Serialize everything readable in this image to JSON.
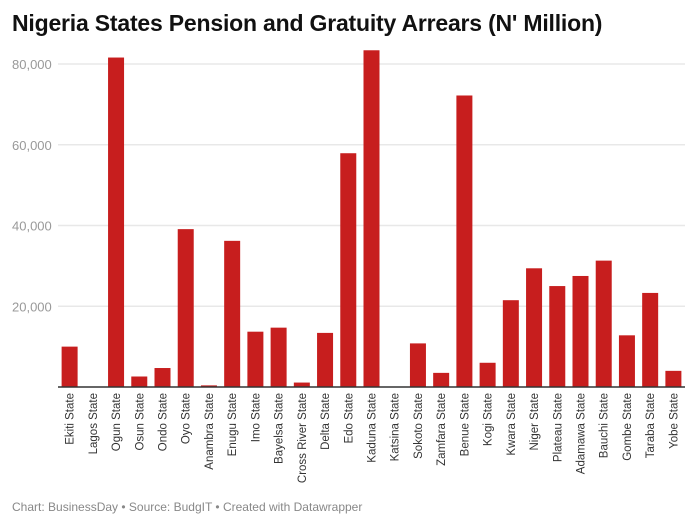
{
  "chart_data": {
    "type": "bar",
    "title": "Nigeria States Pension and Gratuity Arrears (N' Million)",
    "xlabel": "",
    "ylabel": "",
    "ylim": [
      0,
      84000
    ],
    "yticks": [
      20000,
      40000,
      60000,
      80000
    ],
    "ytick_labels": [
      "20,000",
      "40,000",
      "60,000",
      "80,000"
    ],
    "grid": true,
    "bar_color": "#c71e1e",
    "categories": [
      "Ekiti State",
      "Lagos State",
      "Ogun State",
      "Osun State",
      "Ondo State",
      "Oyo State",
      "Anambra State",
      "Enugu State",
      "Imo State",
      "Bayelsa State",
      "Cross River State",
      "Delta State",
      "Edo State",
      "Kaduna State",
      "Katsina State",
      "Sokoto State",
      "Zamfara State",
      "Benue State",
      "Kogi State",
      "Kwara State",
      "Niger State",
      "Plateau State",
      "Adamawa State",
      "Bauchi State",
      "Gombe State",
      "Taraba State",
      "Yobe State"
    ],
    "values": [
      10000,
      0,
      81600,
      2600,
      4700,
      39100,
      400,
      36200,
      13700,
      14700,
      1100,
      13400,
      57900,
      83400,
      0,
      10800,
      3500,
      72200,
      6000,
      21500,
      29400,
      25000,
      27500,
      31300,
      12800,
      23300,
      4000
    ]
  },
  "footer": "Chart: BusinessDay • Source: BudgIT • Created with Datawrapper"
}
